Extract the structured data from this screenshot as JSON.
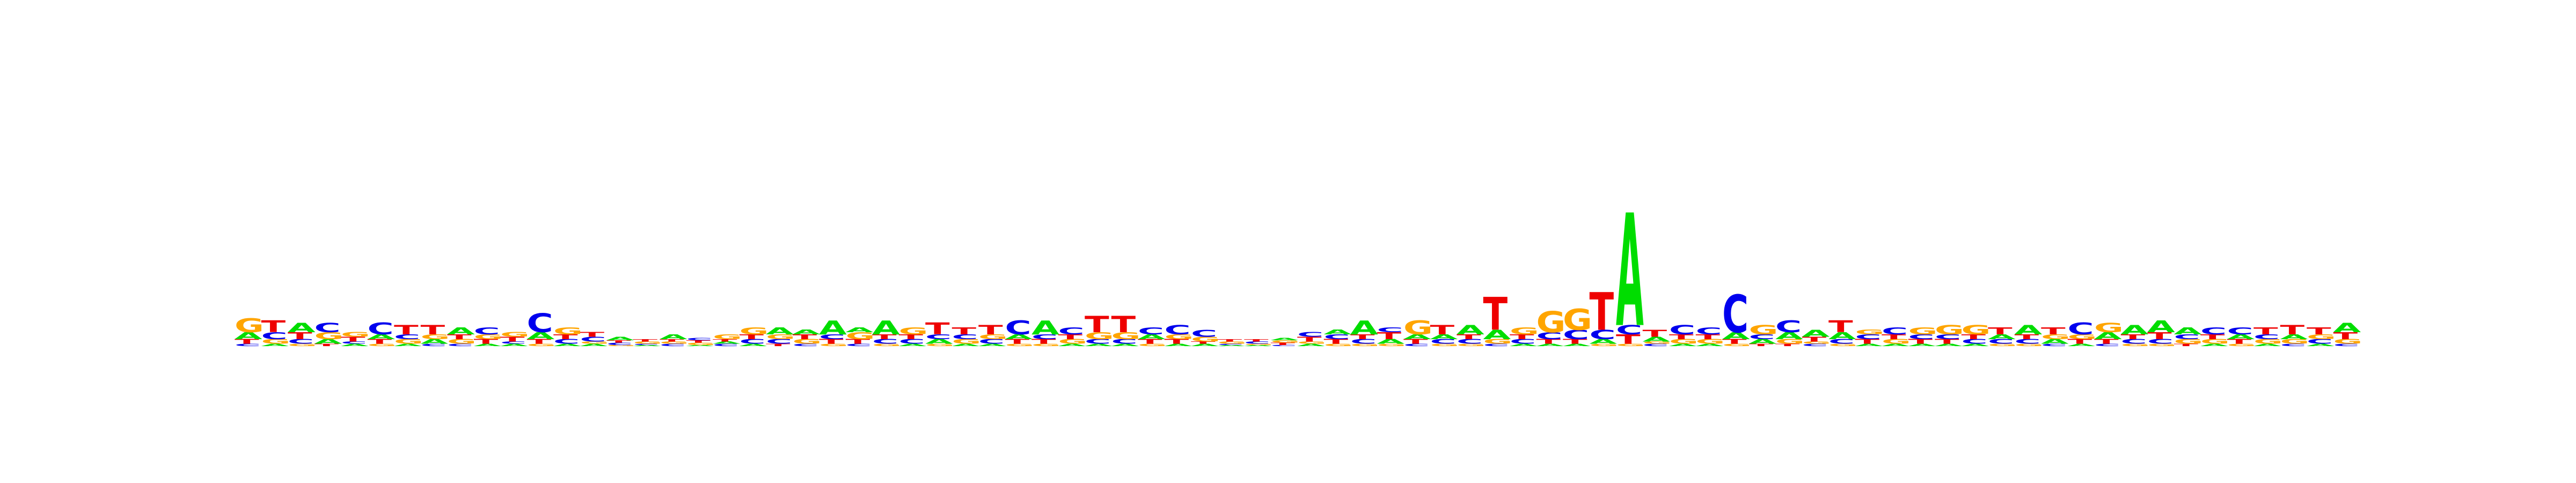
{
  "chart_data": {
    "type": "sequence-logo",
    "title": "",
    "xlabel": "",
    "ylabel": "",
    "ylim": [
      0,
      2
    ],
    "colors": {
      "A": "#00dd00",
      "C": "#0000ee",
      "G": "#ffa500",
      "T": "#ee0000"
    },
    "positions": [
      {
        "C": 0.01,
        "T": 0.02,
        "A": 0.03,
        "G": 0.06
      },
      {
        "A": 0.01,
        "G": 0.02,
        "C": 0.03,
        "T": 0.05
      },
      {
        "G": 0.01,
        "C": 0.02,
        "T": 0.03,
        "A": 0.04
      },
      {
        "T": 0.01,
        "A": 0.02,
        "G": 0.03,
        "C": 0.04
      },
      {
        "A": 0.01,
        "C": 0.01,
        "T": 0.02,
        "G": 0.02
      },
      {
        "G": 0.01,
        "T": 0.02,
        "A": 0.02,
        "C": 0.05
      },
      {
        "A": 0.01,
        "G": 0.02,
        "C": 0.02,
        "T": 0.04
      },
      {
        "C": 0.01,
        "A": 0.02,
        "G": 0.02,
        "T": 0.04
      },
      {
        "C": 0.01,
        "G": 0.02,
        "T": 0.02,
        "A": 0.03
      },
      {
        "A": 0.01,
        "T": 0.02,
        "G": 0.02,
        "C": 0.03
      },
      {
        "A": 0.01,
        "C": 0.01,
        "T": 0.02,
        "G": 0.02
      },
      {
        "G": 0.01,
        "T": 0.02,
        "A": 0.03,
        "C": 0.08
      },
      {
        "A": 0.01,
        "C": 0.02,
        "T": 0.02,
        "G": 0.03
      },
      {
        "A": 0.01,
        "G": 0.01,
        "C": 0.02,
        "T": 0.02
      },
      {
        "G": 0.005,
        "C": 0.01,
        "T": 0.01,
        "A": 0.015
      },
      {
        "A": 0.005,
        "C": 0.005,
        "G": 0.01,
        "T": 0.01
      },
      {
        "C": 0.01,
        "G": 0.01,
        "T": 0.01,
        "A": 0.02
      },
      {
        "A": 0.005,
        "G": 0.01,
        "T": 0.01,
        "C": 0.01
      },
      {
        "C": 0.01,
        "A": 0.01,
        "T": 0.01,
        "G": 0.02
      },
      {
        "A": 0.01,
        "C": 0.02,
        "T": 0.02,
        "G": 0.03
      },
      {
        "T": 0.01,
        "C": 0.02,
        "G": 0.02,
        "A": 0.03
      },
      {
        "C": 0.01,
        "G": 0.02,
        "T": 0.02,
        "A": 0.02
      },
      {
        "G": 0.01,
        "T": 0.02,
        "C": 0.02,
        "A": 0.06
      },
      {
        "C": 0.01,
        "T": 0.02,
        "G": 0.03,
        "A": 0.02
      },
      {
        "G": 0.01,
        "C": 0.02,
        "T": 0.02,
        "A": 0.06
      },
      {
        "A": 0.01,
        "C": 0.02,
        "T": 0.02,
        "G": 0.03
      },
      {
        "G": 0.01,
        "A": 0.02,
        "C": 0.02,
        "T": 0.05
      },
      {
        "A": 0.01,
        "G": 0.02,
        "C": 0.02,
        "T": 0.03
      },
      {
        "A": 0.01,
        "C": 0.02,
        "G": 0.02,
        "T": 0.04
      },
      {
        "G": 0.01,
        "T": 0.02,
        "A": 0.02,
        "C": 0.06
      },
      {
        "G": 0.01,
        "T": 0.02,
        "C": 0.02,
        "A": 0.06
      },
      {
        "A": 0.01,
        "G": 0.02,
        "T": 0.02,
        "C": 0.03
      },
      {
        "A": 0.01,
        "C": 0.02,
        "G": 0.03,
        "T": 0.07
      },
      {
        "A": 0.01,
        "C": 0.02,
        "G": 0.03,
        "T": 0.07
      },
      {
        "G": 0.01,
        "T": 0.02,
        "A": 0.02,
        "C": 0.03
      },
      {
        "A": 0.01,
        "T": 0.02,
        "G": 0.02,
        "C": 0.04
      },
      {
        "A": 0.01,
        "T": 0.01,
        "G": 0.02,
        "C": 0.03
      },
      {
        "A": 0.005,
        "C": 0.005,
        "G": 0.01,
        "T": 0.01
      },
      {
        "A": 0.005,
        "G": 0.005,
        "C": 0.01,
        "T": 0.01
      },
      {
        "C": 0.005,
        "T": 0.01,
        "G": 0.01,
        "A": 0.01
      },
      {
        "A": 0.01,
        "G": 0.01,
        "T": 0.02,
        "C": 0.02
      },
      {
        "G": 0.01,
        "T": 0.02,
        "C": 0.02,
        "A": 0.02
      },
      {
        "G": 0.01,
        "C": 0.02,
        "T": 0.02,
        "A": 0.06
      },
      {
        "G": 0.01,
        "A": 0.02,
        "T": 0.03,
        "C": 0.02
      },
      {
        "C": 0.01,
        "T": 0.02,
        "A": 0.02,
        "G": 0.06
      },
      {
        "G": 0.01,
        "C": 0.02,
        "A": 0.02,
        "T": 0.04
      },
      {
        "G": 0.01,
        "C": 0.02,
        "T": 0.02,
        "A": 0.04
      },
      {
        "C": 0.01,
        "G": 0.02,
        "A": 0.04,
        "T": 0.14
      },
      {
        "A": 0.01,
        "C": 0.02,
        "T": 0.02,
        "G": 0.03
      },
      {
        "A": 0.01,
        "T": 0.02,
        "C": 0.03,
        "G": 0.09
      },
      {
        "A": 0.01,
        "T": 0.02,
        "C": 0.04,
        "G": 0.09
      },
      {
        "G": 0.01,
        "A": 0.02,
        "C": 0.04,
        "T": 0.16
      },
      {
        "G": 0.01,
        "T": 0.04,
        "C": 0.04,
        "A": 0.48
      },
      {
        "C": 0.01,
        "G": 0.01,
        "A": 0.02,
        "T": 0.03
      },
      {
        "A": 0.01,
        "G": 0.02,
        "T": 0.02,
        "C": 0.04
      },
      {
        "A": 0.01,
        "G": 0.02,
        "T": 0.02,
        "C": 0.03
      },
      {
        "G": 0.01,
        "T": 0.02,
        "A": 0.03,
        "C": 0.16
      },
      {
        "T": 0.01,
        "A": 0.02,
        "C": 0.02,
        "G": 0.04
      },
      {
        "T": 0.01,
        "G": 0.02,
        "A": 0.03,
        "C": 0.05
      },
      {
        "C": 0.01,
        "G": 0.01,
        "T": 0.02,
        "A": 0.03
      },
      {
        "G": 0.01,
        "C": 0.02,
        "A": 0.03,
        "T": 0.05
      },
      {
        "A": 0.01,
        "T": 0.02,
        "C": 0.02,
        "G": 0.02
      },
      {
        "A": 0.01,
        "G": 0.02,
        "T": 0.02,
        "C": 0.03
      },
      {
        "A": 0.01,
        "T": 0.02,
        "C": 0.02,
        "G": 0.03
      },
      {
        "A": 0.01,
        "T": 0.02,
        "C": 0.02,
        "G": 0.04
      },
      {
        "A": 0.01,
        "C": 0.02,
        "T": 0.02,
        "G": 0.04
      },
      {
        "G": 0.01,
        "C": 0.02,
        "A": 0.02,
        "T": 0.03
      },
      {
        "G": 0.01,
        "C": 0.02,
        "T": 0.02,
        "A": 0.04
      },
      {
        "C": 0.01,
        "A": 0.02,
        "G": 0.02,
        "T": 0.03
      },
      {
        "A": 0.01,
        "T": 0.02,
        "G": 0.02,
        "C": 0.05
      },
      {
        "C": 0.01,
        "T": 0.02,
        "A": 0.03,
        "G": 0.04
      },
      {
        "G": 0.01,
        "C": 0.02,
        "T": 0.02,
        "A": 0.04
      },
      {
        "G": 0.01,
        "C": 0.02,
        "T": 0.03,
        "A": 0.05
      },
      {
        "T": 0.01,
        "G": 0.02,
        "C": 0.02,
        "A": 0.03
      },
      {
        "A": 0.01,
        "G": 0.02,
        "T": 0.02,
        "C": 0.03
      },
      {
        "G": 0.01,
        "T": 0.02,
        "A": 0.02,
        "C": 0.03
      },
      {
        "A": 0.01,
        "G": 0.02,
        "C": 0.02,
        "T": 0.03
      },
      {
        "C": 0.01,
        "G": 0.02,
        "A": 0.02,
        "T": 0.04
      },
      {
        "A": 0.01,
        "C": 0.02,
        "G": 0.02,
        "T": 0.03
      },
      {
        "C": 0.01,
        "G": 0.02,
        "T": 0.03,
        "A": 0.04
      }
    ]
  }
}
